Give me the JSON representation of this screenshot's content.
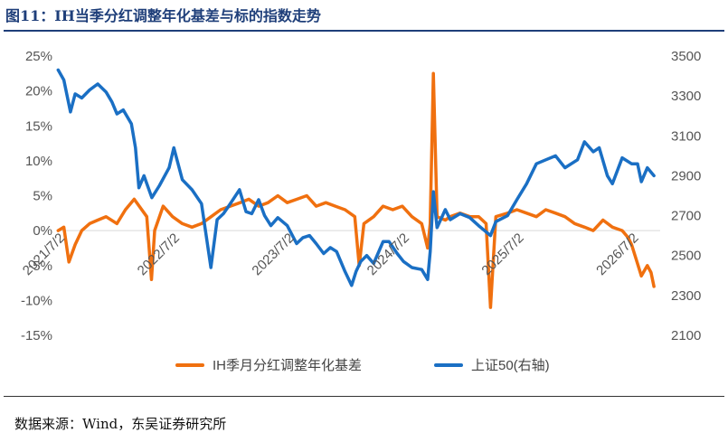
{
  "figure": {
    "title": "图11：IH当季分红调整年化基差与标的指数走势",
    "source": "数据来源：Wind，东吴证券研究所"
  },
  "chart_data": {
    "type": "line",
    "title": "图11：IH当季分红调整年化基差与标的指数走势",
    "xlabel": "",
    "ylabel": "",
    "grid": false,
    "legend_position": "bottom-center",
    "x_range": [
      "2021-07-01",
      "2026-09-30"
    ],
    "x_tick_labels": [
      "2021/7/2",
      "2022/7/2",
      "2023/7/2",
      "2024/7/2",
      "2025/7/2",
      "2026/7/2"
    ],
    "y_left": {
      "range": [
        -0.15,
        0.25
      ],
      "ticks": [
        "-15%",
        "-10%",
        "-5%",
        "0%",
        "5%",
        "10%",
        "15%",
        "20%",
        "25%"
      ]
    },
    "y_right": {
      "range": [
        2100,
        3500
      ],
      "ticks": [
        "2100",
        "2300",
        "2500",
        "2700",
        "2900",
        "3100",
        "3300",
        "3500"
      ]
    },
    "series": [
      {
        "name": "IH季月分红调整年化基差",
        "axis": "left",
        "color": "#f0700f",
        "x": [
          "2021-07-02",
          "2021-07-20",
          "2021-08-05",
          "2021-08-25",
          "2021-09-15",
          "2021-10-10",
          "2021-11-05",
          "2021-12-01",
          "2022-01-05",
          "2022-02-01",
          "2022-03-01",
          "2022-04-10",
          "2022-04-25",
          "2022-05-05",
          "2022-06-01",
          "2022-07-01",
          "2022-08-01",
          "2022-09-01",
          "2022-10-01",
          "2022-11-01",
          "2022-12-01",
          "2023-01-01",
          "2023-02-01",
          "2023-03-01",
          "2023-04-01",
          "2023-05-01",
          "2023-06-01",
          "2023-07-01",
          "2023-08-01",
          "2023-09-01",
          "2023-10-01",
          "2023-11-01",
          "2023-12-01",
          "2024-01-01",
          "2024-02-01",
          "2024-02-15",
          "2024-03-01",
          "2024-04-01",
          "2024-05-01",
          "2024-06-01",
          "2024-07-01",
          "2024-08-01",
          "2024-09-01",
          "2024-09-20",
          "2024-09-28",
          "2024-10-08",
          "2024-10-20",
          "2024-11-15",
          "2024-12-01",
          "2025-01-01",
          "2025-02-01",
          "2025-03-01",
          "2025-03-25",
          "2025-04-08",
          "2025-04-25",
          "2025-06-01",
          "2025-07-01",
          "2025-08-01",
          "2025-09-01",
          "2025-10-01",
          "2025-11-01",
          "2025-12-01",
          "2026-01-01",
          "2026-02-01",
          "2026-03-01",
          "2026-04-01",
          "2026-05-01",
          "2026-06-01",
          "2026-06-20",
          "2026-07-01",
          "2026-07-15",
          "2026-08-01",
          "2026-08-20",
          "2026-09-01",
          "2026-09-10"
        ],
        "values": [
          0.0,
          0.005,
          -0.045,
          -0.02,
          0.0,
          0.01,
          0.015,
          0.02,
          0.01,
          0.03,
          0.045,
          0.02,
          -0.07,
          0.0,
          0.035,
          0.02,
          0.01,
          0.005,
          0.01,
          0.02,
          0.03,
          0.035,
          0.04,
          0.045,
          0.035,
          0.04,
          0.05,
          0.04,
          0.045,
          0.05,
          0.035,
          0.04,
          0.035,
          0.03,
          0.02,
          -0.05,
          0.01,
          0.02,
          0.035,
          0.03,
          0.035,
          0.02,
          0.01,
          -0.025,
          0.01,
          0.225,
          0.02,
          0.015,
          0.02,
          0.025,
          0.02,
          0.02,
          0.01,
          -0.11,
          0.02,
          0.025,
          0.03,
          0.025,
          0.02,
          0.03,
          0.025,
          0.02,
          0.01,
          0.005,
          0.0,
          0.015,
          0.005,
          0.0,
          -0.01,
          -0.02,
          -0.04,
          -0.065,
          -0.05,
          -0.06,
          -0.08
        ]
      },
      {
        "name": "上证50(右轴)",
        "axis": "right",
        "color": "#1a6fc4",
        "x": [
          "2021-07-02",
          "2021-07-20",
          "2021-08-10",
          "2021-08-25",
          "2021-09-15",
          "2021-10-10",
          "2021-11-05",
          "2021-12-01",
          "2021-12-20",
          "2022-01-05",
          "2022-01-25",
          "2022-02-20",
          "2022-03-05",
          "2022-03-16",
          "2022-04-01",
          "2022-04-26",
          "2022-05-20",
          "2022-06-20",
          "2022-07-05",
          "2022-08-01",
          "2022-09-01",
          "2022-10-01",
          "2022-10-31",
          "2022-11-20",
          "2022-12-10",
          "2023-01-01",
          "2023-01-30",
          "2023-02-20",
          "2023-03-10",
          "2023-04-01",
          "2023-04-20",
          "2023-05-10",
          "2023-06-01",
          "2023-07-01",
          "2023-07-31",
          "2023-08-20",
          "2023-09-10",
          "2023-10-01",
          "2023-10-25",
          "2023-11-15",
          "2023-12-05",
          "2024-01-01",
          "2024-01-22",
          "2024-02-05",
          "2024-02-20",
          "2024-03-10",
          "2024-04-01",
          "2024-05-01",
          "2024-05-20",
          "2024-06-15",
          "2024-07-05",
          "2024-08-01",
          "2024-09-01",
          "2024-09-20",
          "2024-09-28",
          "2024-10-08",
          "2024-10-20",
          "2024-11-15",
          "2024-12-01",
          "2025-01-01",
          "2025-02-01",
          "2025-03-01",
          "2025-04-08",
          "2025-04-25",
          "2025-06-01",
          "2025-07-01",
          "2025-08-01",
          "2025-09-01",
          "2025-10-01",
          "2025-11-01",
          "2025-12-01",
          "2026-01-10",
          "2026-02-01",
          "2026-03-01",
          "2026-03-20",
          "2026-04-15",
          "2026-05-01",
          "2026-06-01",
          "2026-07-01",
          "2026-07-20",
          "2026-08-01",
          "2026-08-20",
          "2026-09-10"
        ],
        "values": [
          3430,
          3380,
          3220,
          3310,
          3290,
          3330,
          3360,
          3320,
          3270,
          3210,
          3230,
          3160,
          3040,
          2840,
          2900,
          2790,
          2850,
          2940,
          3040,
          2880,
          2830,
          2760,
          2440,
          2680,
          2710,
          2760,
          2830,
          2720,
          2710,
          2780,
          2700,
          2650,
          2690,
          2650,
          2560,
          2590,
          2600,
          2560,
          2510,
          2540,
          2520,
          2420,
          2350,
          2420,
          2470,
          2500,
          2460,
          2570,
          2570,
          2510,
          2470,
          2440,
          2430,
          2380,
          2520,
          2820,
          2640,
          2730,
          2680,
          2710,
          2690,
          2650,
          2600,
          2670,
          2700,
          2780,
          2860,
          2960,
          2980,
          3000,
          2940,
          2980,
          3070,
          3020,
          3040,
          2900,
          2860,
          2990,
          2960,
          2960,
          2870,
          2940,
          2900
        ]
      }
    ]
  }
}
